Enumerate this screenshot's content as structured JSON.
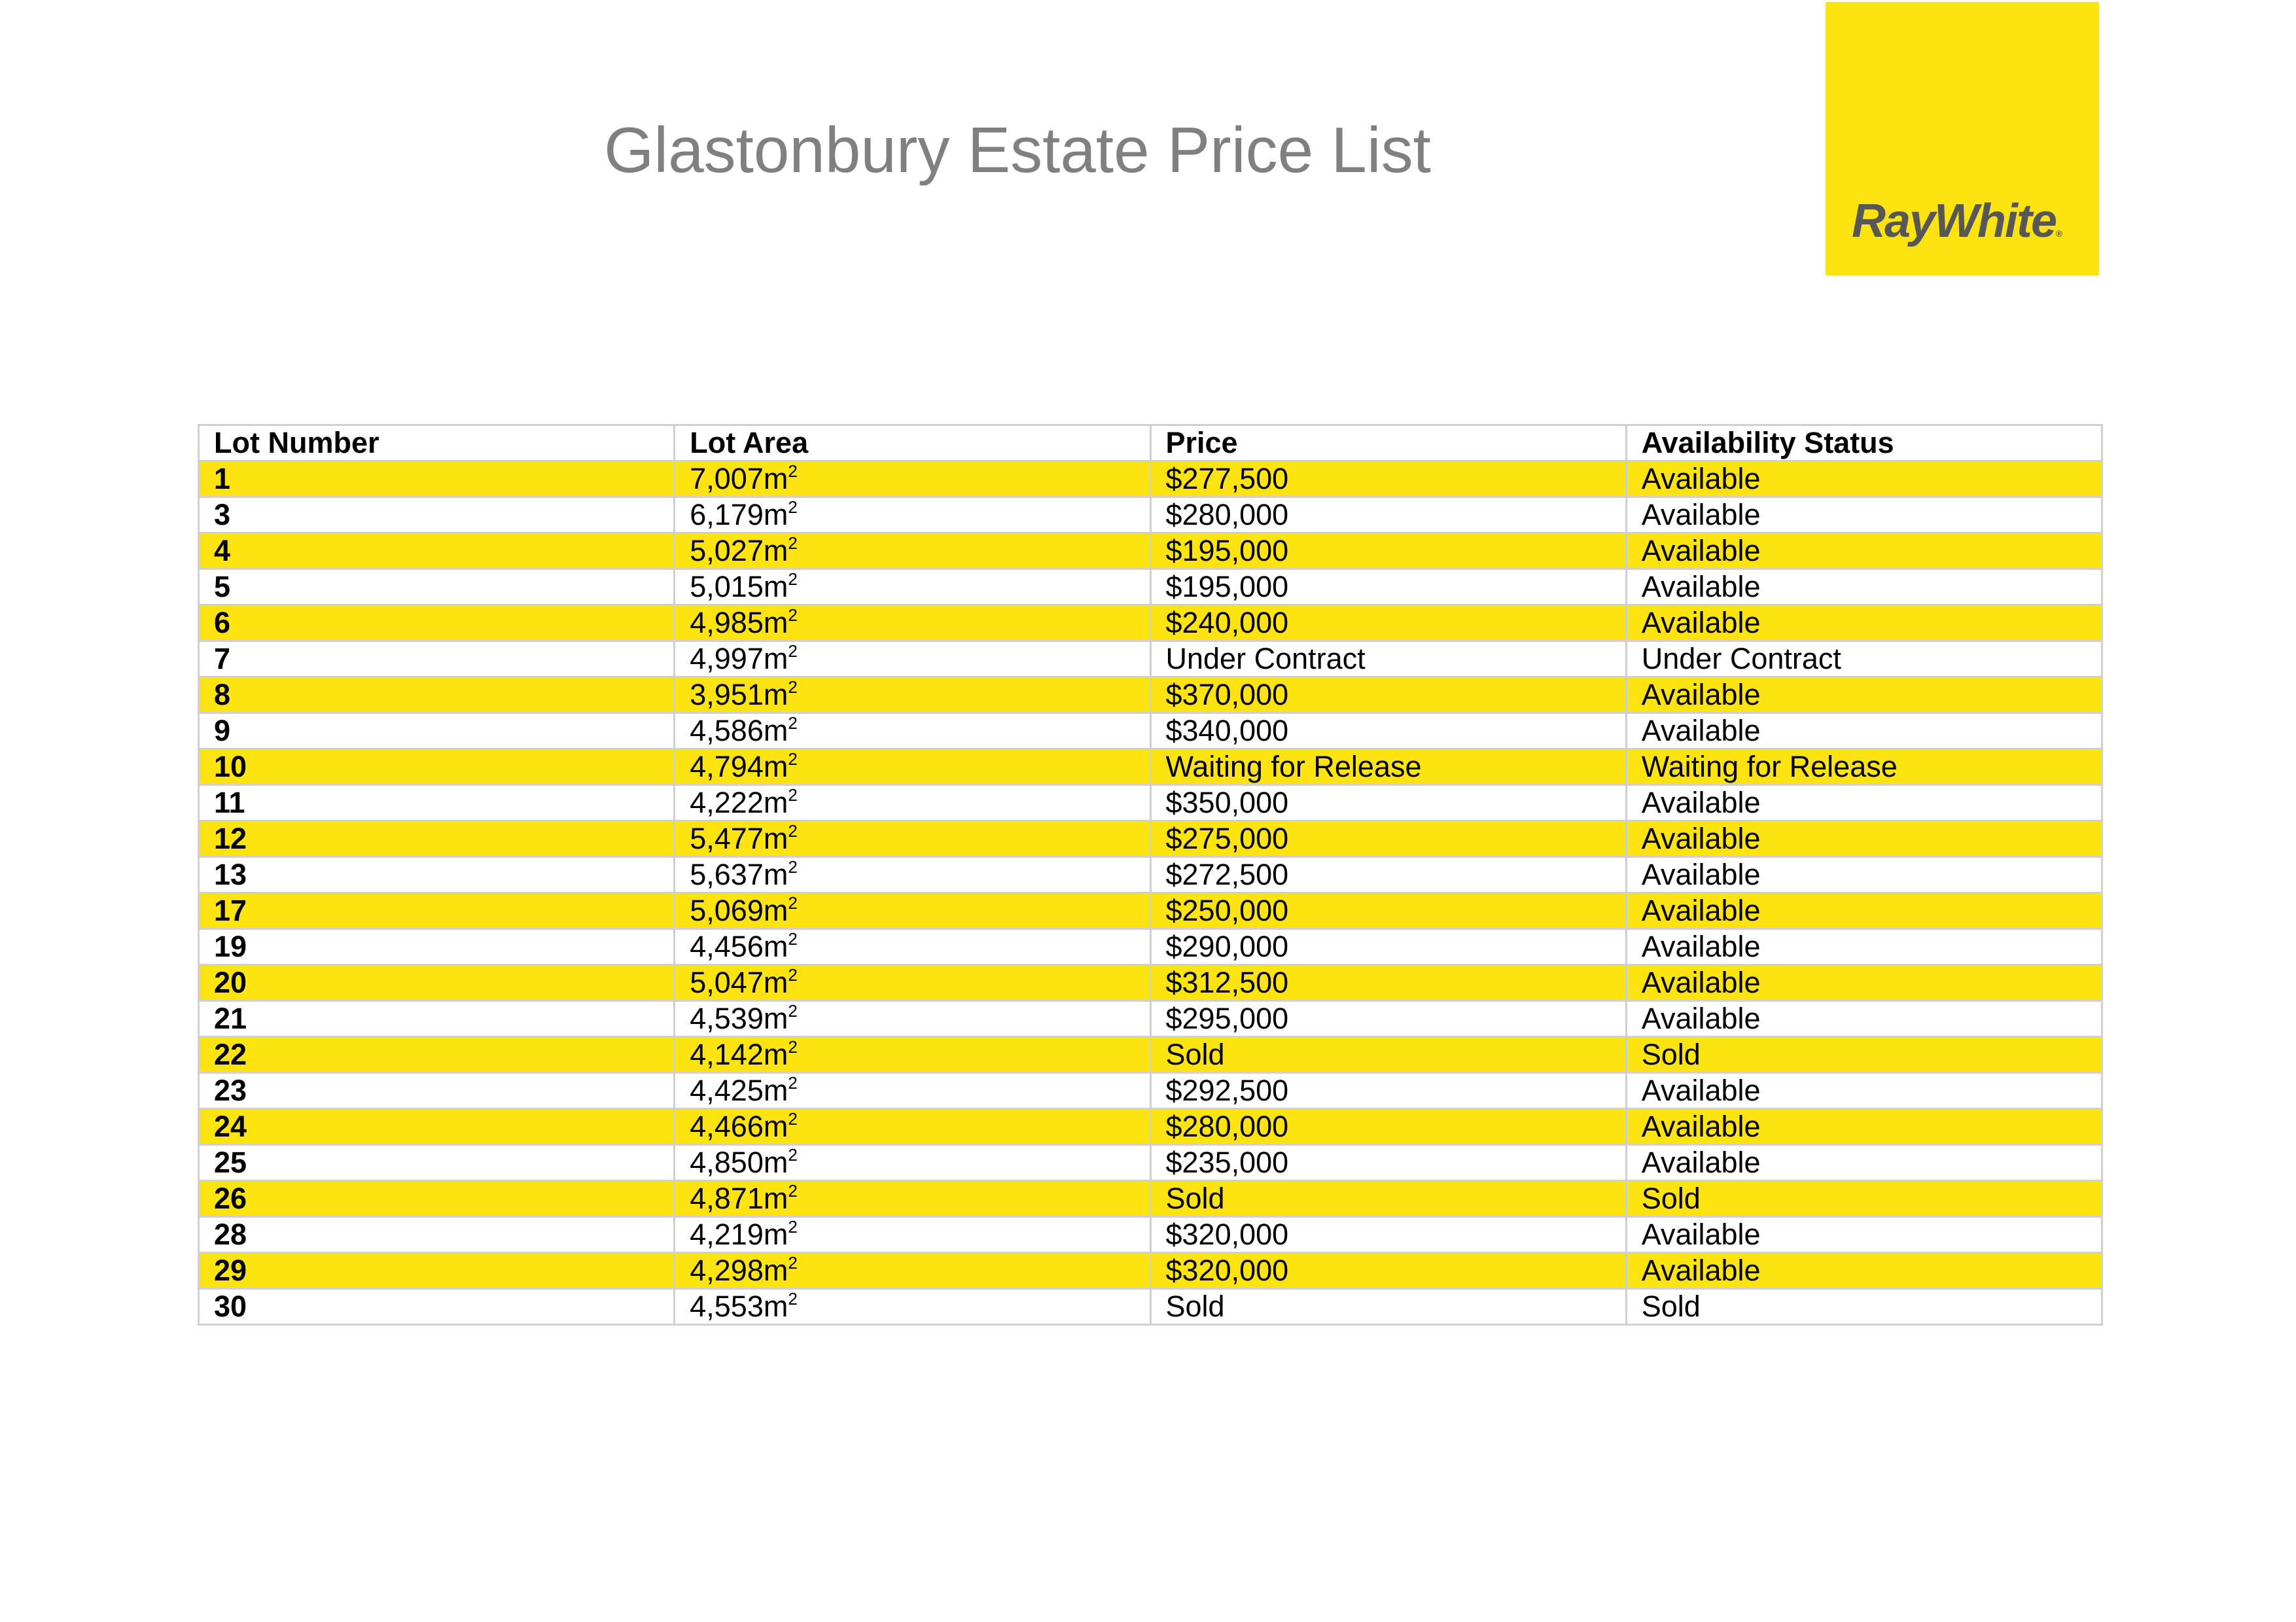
{
  "title": "Glastonbury Estate Price List",
  "logo": {
    "text": "RayWhite",
    "brand_color": "#FDE30F",
    "text_color": "#575757"
  },
  "colors": {
    "highlight_row": "#FDE30F",
    "border": "#d0d0d0",
    "title": "#808080"
  },
  "table": {
    "headers": [
      "Lot Number",
      "Lot Area",
      "Price",
      "Availability Status"
    ],
    "area_unit": "m",
    "area_unit_exponent": "2",
    "rows": [
      {
        "lot": "1",
        "area": "7,007",
        "price": "$277,500",
        "status": "Available"
      },
      {
        "lot": "3",
        "area": "6,179",
        "price": "$280,000",
        "status": "Available"
      },
      {
        "lot": "4",
        "area": "5,027",
        "price": "$195,000",
        "status": "Available"
      },
      {
        "lot": "5",
        "area": "5,015",
        "price": "$195,000",
        "status": "Available"
      },
      {
        "lot": "6",
        "area": "4,985",
        "price": "$240,000",
        "status": "Available"
      },
      {
        "lot": "7",
        "area": "4,997",
        "price": "Under Contract",
        "status": "Under Contract"
      },
      {
        "lot": "8",
        "area": "3,951",
        "price": "$370,000",
        "status": "Available"
      },
      {
        "lot": "9",
        "area": "4,586",
        "price": "$340,000",
        "status": "Available"
      },
      {
        "lot": "10",
        "area": "4,794",
        "price": "Waiting for Release",
        "status": "Waiting for Release"
      },
      {
        "lot": "11",
        "area": "4,222",
        "price": "$350,000",
        "status": "Available"
      },
      {
        "lot": "12",
        "area": "5,477",
        "price": "$275,000",
        "status": "Available"
      },
      {
        "lot": "13",
        "area": "5,637",
        "price": "$272,500",
        "status": "Available"
      },
      {
        "lot": "17",
        "area": "5,069",
        "price": "$250,000",
        "status": "Available"
      },
      {
        "lot": "19",
        "area": "4,456",
        "price": "$290,000",
        "status": "Available"
      },
      {
        "lot": "20",
        "area": "5,047",
        "price": "$312,500",
        "status": "Available"
      },
      {
        "lot": "21",
        "area": "4,539",
        "price": "$295,000",
        "status": "Available"
      },
      {
        "lot": "22",
        "area": "4,142",
        "price": "Sold",
        "status": "Sold"
      },
      {
        "lot": "23",
        "area": "4,425",
        "price": "$292,500",
        "status": "Available"
      },
      {
        "lot": "24",
        "area": "4,466",
        "price": "$280,000",
        "status": "Available"
      },
      {
        "lot": "25",
        "area": "4,850",
        "price": "$235,000",
        "status": "Available"
      },
      {
        "lot": "26",
        "area": "4,871",
        "price": "Sold",
        "status": "Sold"
      },
      {
        "lot": "28",
        "area": "4,219",
        "price": "$320,000",
        "status": "Available"
      },
      {
        "lot": "29",
        "area": "4,298",
        "price": "$320,000",
        "status": "Available"
      },
      {
        "lot": "30",
        "area": "4,553",
        "price": "Sold",
        "status": "Sold"
      }
    ]
  }
}
